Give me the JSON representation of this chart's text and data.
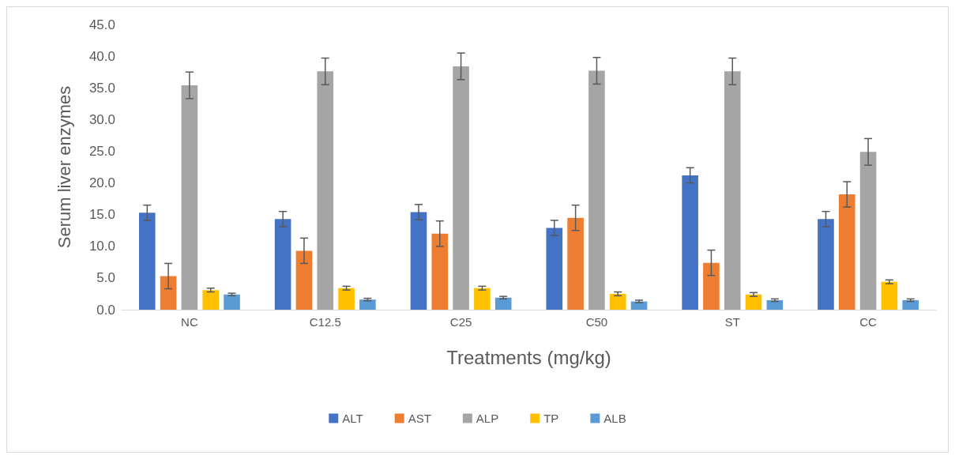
{
  "chart_data": {
    "type": "bar",
    "xlabel": "Treatments (mg/kg)",
    "ylabel": "Serum liver enzymes",
    "categories": [
      "NC",
      "C12.5",
      "C25",
      "C50",
      "ST",
      "CC"
    ],
    "series": [
      {
        "name": "ALT",
        "color": "#4472c4",
        "values": [
          15.3,
          14.3,
          15.4,
          12.9,
          21.2,
          14.3
        ],
        "errors": [
          1.2,
          1.2,
          1.2,
          1.2,
          1.2,
          1.2
        ]
      },
      {
        "name": "AST",
        "color": "#ed7d31",
        "values": [
          5.3,
          9.3,
          12.0,
          14.5,
          7.4,
          18.2
        ],
        "errors": [
          2.0,
          2.0,
          2.0,
          2.0,
          2.0,
          2.0
        ]
      },
      {
        "name": "ALP",
        "color": "#a5a5a5",
        "values": [
          35.4,
          37.6,
          38.4,
          37.7,
          37.6,
          24.9
        ],
        "errors": [
          2.1,
          2.1,
          2.1,
          2.1,
          2.1,
          2.1
        ]
      },
      {
        "name": "TP",
        "color": "#ffc000",
        "values": [
          3.1,
          3.4,
          3.4,
          2.5,
          2.4,
          4.4
        ],
        "errors": [
          0.3,
          0.3,
          0.3,
          0.3,
          0.3,
          0.3
        ]
      },
      {
        "name": "ALB",
        "color": "#5b9bd5",
        "values": [
          2.4,
          1.6,
          1.9,
          1.3,
          1.5,
          1.5
        ],
        "errors": [
          0.2,
          0.2,
          0.2,
          0.2,
          0.2,
          0.2
        ]
      }
    ],
    "ylim": [
      0,
      45
    ],
    "yticks": [
      {
        "value": 0,
        "label": "0.0"
      },
      {
        "value": 5,
        "label": "5.0"
      },
      {
        "value": 10,
        "label": "10.0"
      },
      {
        "value": 15,
        "label": "15.0"
      },
      {
        "value": 20,
        "label": "20.0"
      },
      {
        "value": 25,
        "label": "25.0"
      },
      {
        "value": 30,
        "label": "30.0"
      },
      {
        "value": 35,
        "label": "35.0"
      },
      {
        "value": 40,
        "label": "40.0"
      },
      {
        "value": 45,
        "label": "45.0"
      }
    ],
    "grid": false,
    "legend": "bottom"
  }
}
